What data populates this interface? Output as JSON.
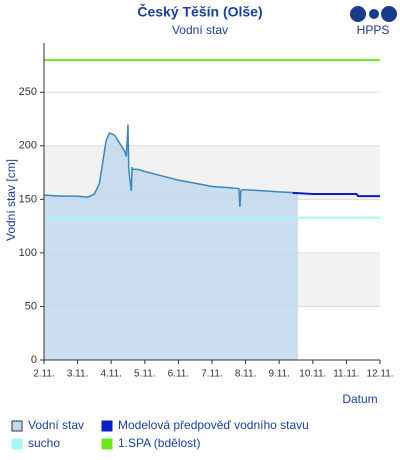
{
  "chart_data": {
    "type": "line",
    "title": "Český Těšín (Olše)",
    "subtitle": "Vodní stav",
    "logo": "HPPS",
    "y_label": "Vodní stav [cm]",
    "x_label": "Datum",
    "xlim": [
      2,
      12
    ],
    "xticks": [
      {
        "value": 2,
        "label": "2.11."
      },
      {
        "value": 3,
        "label": "3.11."
      },
      {
        "value": 4,
        "label": "4.11."
      },
      {
        "value": 5,
        "label": "5.11."
      },
      {
        "value": 6,
        "label": "6.11."
      },
      {
        "value": 7,
        "label": "7.11."
      },
      {
        "value": 8,
        "label": "8.11."
      },
      {
        "value": 9,
        "label": "9.11."
      },
      {
        "value": 10,
        "label": "10.11."
      },
      {
        "value": 11,
        "label": "11.11."
      },
      {
        "value": 12,
        "label": "12.11."
      }
    ],
    "ylim": [
      0,
      296
    ],
    "yticks": [
      0,
      50,
      100,
      150,
      200,
      250
    ],
    "grid": true,
    "series": [
      {
        "name": "Vodní stav",
        "color": "#3a87c0",
        "fill": "#c3d9ef",
        "x": [
          2,
          2.5,
          3,
          3.3,
          3.5,
          3.65,
          3.75,
          3.85,
          3.95,
          4.1,
          4.2,
          4.4,
          4.45,
          4.5,
          4.52,
          4.55,
          4.6,
          4.62,
          4.65,
          4.8,
          5,
          5.5,
          6,
          6.5,
          7,
          7.5,
          7.8,
          7.83,
          7.86,
          7.9,
          8,
          8.5,
          9,
          9.56
        ],
        "values": [
          154,
          153,
          153,
          152,
          155,
          165,
          185,
          205,
          212,
          210,
          205,
          195,
          190,
          220,
          180,
          170,
          158,
          180,
          178,
          178,
          176,
          172,
          168,
          165,
          162,
          161,
          160,
          143,
          158,
          159,
          159,
          158,
          157,
          156
        ]
      },
      {
        "name": "Modelová předpověď vodního stavu",
        "color": "#0a1fc8",
        "x": [
          9.4,
          10,
          11.3,
          11.35,
          12
        ],
        "values": [
          156,
          155,
          155,
          153,
          153
        ]
      }
    ],
    "thresholds": [
      {
        "name": "sucho",
        "color": "#a8f5f5",
        "value": 133
      },
      {
        "name": "1.SPA (bdělost)",
        "color": "#6ee61e",
        "value": 280
      }
    ]
  }
}
